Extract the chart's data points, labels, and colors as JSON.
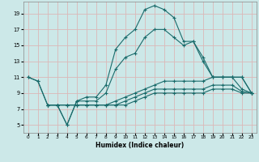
{
  "title": "",
  "xlabel": "Humidex (Indice chaleur)",
  "xlim": [
    -0.5,
    23.5
  ],
  "ylim": [
    4,
    20.5
  ],
  "xticks": [
    0,
    1,
    2,
    3,
    4,
    5,
    6,
    7,
    8,
    9,
    10,
    11,
    12,
    13,
    14,
    15,
    16,
    17,
    18,
    19,
    20,
    21,
    22,
    23
  ],
  "yticks": [
    5,
    7,
    9,
    11,
    13,
    15,
    17,
    19
  ],
  "bg_color": "#cce8e8",
  "grid_color": "#dbb8b8",
  "line_color": "#1a6b6b",
  "lines": [
    {
      "x": [
        0,
        1,
        2,
        3,
        4,
        5,
        6,
        7,
        8,
        9,
        10,
        11,
        12,
        13,
        14,
        15,
        16,
        17,
        18,
        19,
        20,
        21,
        22,
        23
      ],
      "y": [
        11,
        10.5,
        7.5,
        7.5,
        5,
        8,
        8.5,
        8.5,
        10,
        14.5,
        16,
        17,
        19.5,
        20,
        19.5,
        18.5,
        15.5,
        15.5,
        13.5,
        11,
        11,
        11,
        11,
        9
      ]
    },
    {
      "x": [
        0,
        1,
        2,
        3,
        4,
        5,
        6,
        7,
        8,
        9,
        10,
        11,
        12,
        13,
        14,
        15,
        16,
        17,
        18,
        19,
        20,
        21,
        22,
        23
      ],
      "y": [
        11,
        10.5,
        7.5,
        7.5,
        5,
        8,
        8,
        8,
        9,
        12,
        13.5,
        14,
        16,
        17,
        17,
        16,
        15,
        15.5,
        13,
        11,
        11,
        11,
        11,
        9
      ]
    },
    {
      "x": [
        2,
        3,
        4,
        5,
        6,
        7,
        8,
        9,
        10,
        11,
        12,
        13,
        14,
        15,
        16,
        17,
        18,
        19,
        20,
        21,
        22,
        23
      ],
      "y": [
        7.5,
        7.5,
        7.5,
        7.5,
        7.5,
        7.5,
        7.5,
        8,
        8.5,
        9,
        9.5,
        10,
        10.5,
        10.5,
        10.5,
        10.5,
        10.5,
        11,
        11,
        11,
        9.5,
        9
      ]
    },
    {
      "x": [
        2,
        3,
        4,
        5,
        6,
        7,
        8,
        9,
        10,
        11,
        12,
        13,
        14,
        15,
        16,
        17,
        18,
        19,
        20,
        21,
        22,
        23
      ],
      "y": [
        7.5,
        7.5,
        7.5,
        7.5,
        7.5,
        7.5,
        7.5,
        7.5,
        8,
        8.5,
        9,
        9.5,
        9.5,
        9.5,
        9.5,
        9.5,
        9.5,
        10,
        10,
        10,
        9.2,
        9
      ]
    },
    {
      "x": [
        2,
        3,
        4,
        5,
        6,
        7,
        8,
        9,
        10,
        11,
        12,
        13,
        14,
        15,
        16,
        17,
        18,
        19,
        20,
        21,
        22,
        23
      ],
      "y": [
        7.5,
        7.5,
        7.5,
        7.5,
        7.5,
        7.5,
        7.5,
        7.5,
        7.5,
        8,
        8.5,
        9,
        9,
        9,
        9,
        9,
        9,
        9.5,
        9.5,
        9.5,
        9,
        9
      ]
    }
  ]
}
